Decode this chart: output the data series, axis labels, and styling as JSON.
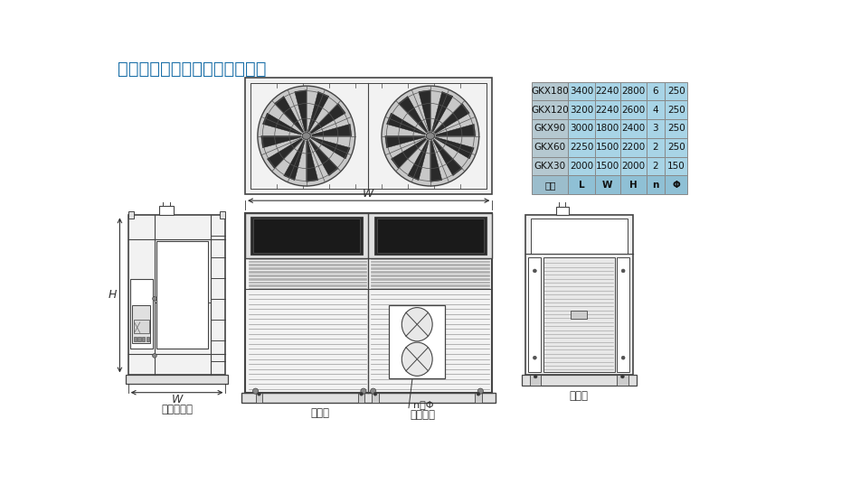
{
  "title": "增强型移动冷风机岗位机外形图",
  "title_color": "#1a6fa8",
  "bg_color": "#ffffff",
  "table_header": [
    "名称",
    "L",
    "W",
    "H",
    "n",
    "Φ"
  ],
  "table_rows": [
    [
      "GKX30",
      "2000",
      "1500",
      "2000",
      "2",
      "150"
    ],
    [
      "GKX60",
      "2250",
      "1500",
      "2200",
      "2",
      "250"
    ],
    [
      "GKX90",
      "3000",
      "1800",
      "2400",
      "3",
      "250"
    ],
    [
      "GKX120",
      "3200",
      "2240",
      "2600",
      "4",
      "250"
    ],
    [
      "GKX180",
      "3400",
      "2240",
      "2800",
      "6",
      "250"
    ]
  ],
  "table_header_bg": "#8fc0d5",
  "table_data_bg": "#a8d4e6",
  "table_name_bg": "#b5c8d0",
  "line_color": "#444444",
  "dim_color": "#333333",
  "label_color": "#333333",
  "louver_color": "#999999",
  "fill_light": "#f2f2f2",
  "fill_mid": "#e0e0e0",
  "fill_dark": "#cccccc"
}
